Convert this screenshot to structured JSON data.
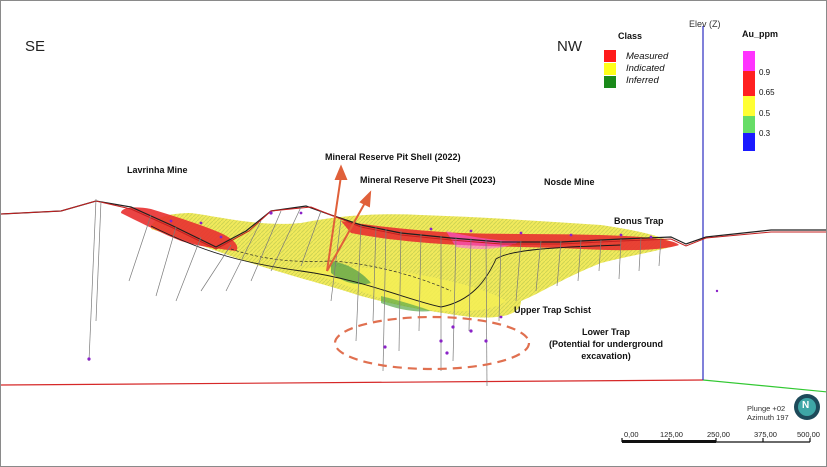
{
  "view": {
    "left_label": "SE",
    "right_label": "NW",
    "axis_label": "Elev (Z)",
    "plunge": "Plunge +02",
    "azimuth": "Azimuth 197",
    "compass_letter": "N"
  },
  "class_legend": {
    "title": "Class",
    "items": [
      {
        "label": "Measured",
        "color": "#ff1a1a"
      },
      {
        "label": "Indicated",
        "color": "#ffff1a"
      },
      {
        "label": "Inferred",
        "color": "#1a8a1a"
      }
    ]
  },
  "grade_legend": {
    "title": "Au_ppm",
    "stops": [
      {
        "label": "0.9",
        "color": "#ff33ff"
      },
      {
        "label": "0.65",
        "color": "#ff2020"
      },
      {
        "label": "0.5",
        "color": "#ffff33"
      },
      {
        "label": "0.3",
        "color": "#66dd66"
      },
      {
        "label": "",
        "color": "#1a1aff"
      }
    ]
  },
  "labels": {
    "lavrinha": "Lavrinha Mine",
    "pit_2022": "Mineral Reserve Pit Shell (2022)",
    "pit_2023": "Mineral Reserve Pit Shell (2023)",
    "nosde": "Nosde Mine",
    "bonus": "Bonus Trap",
    "upper_trap": "Upper Trap Schist",
    "lower_trap": "Lower Trap",
    "lower_trap_note_1": "(Potential for underground",
    "lower_trap_note_2": "excavation)"
  },
  "scale_bar": {
    "ticks": [
      "0,00",
      "125,00",
      "250,00",
      "375,00",
      "500,00"
    ]
  }
}
